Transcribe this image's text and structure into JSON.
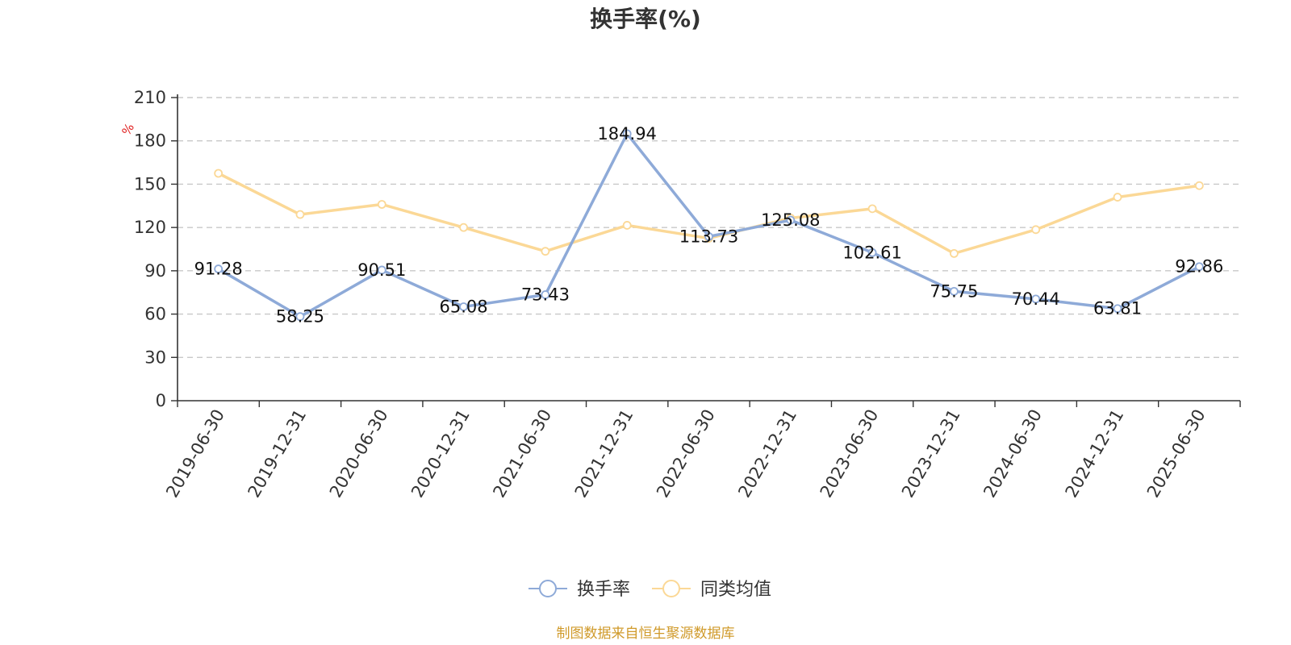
{
  "chart_data": {
    "type": "line",
    "title": "换手率(%)",
    "ylabel": "%",
    "xlabel": "",
    "ylim": [
      0,
      210
    ],
    "yticks": [
      0,
      30,
      60,
      90,
      120,
      150,
      180,
      210
    ],
    "grid": true,
    "legend_position": "bottom-center",
    "categories": [
      "2019-06-30",
      "2019-12-31",
      "2020-06-30",
      "2020-12-31",
      "2021-06-30",
      "2021-12-31",
      "2022-06-30",
      "2022-12-31",
      "2023-06-30",
      "2023-12-31",
      "2024-06-30",
      "2024-12-31",
      "2025-06-30"
    ],
    "series": [
      {
        "name": "换手率",
        "color": "#8eaad8",
        "labeled": true,
        "values": [
          91.28,
          58.25,
          90.51,
          65.08,
          73.43,
          184.94,
          113.73,
          125.08,
          102.61,
          75.75,
          70.44,
          63.81,
          92.86
        ],
        "labels": [
          "91.28",
          "58.25",
          "90.51",
          "65.08",
          "73.43",
          "184.94",
          "113.73",
          "125.08",
          "102.61",
          "75.75",
          "70.44",
          "63.81",
          "92.86"
        ]
      },
      {
        "name": "同类均值",
        "color": "#fbd896",
        "labeled": false,
        "values": [
          157.5,
          129,
          136,
          120,
          103.5,
          121.5,
          112.5,
          126.5,
          133,
          102,
          118.5,
          141,
          149
        ]
      }
    ],
    "source": "制图数据来自恒生聚源数据库"
  }
}
